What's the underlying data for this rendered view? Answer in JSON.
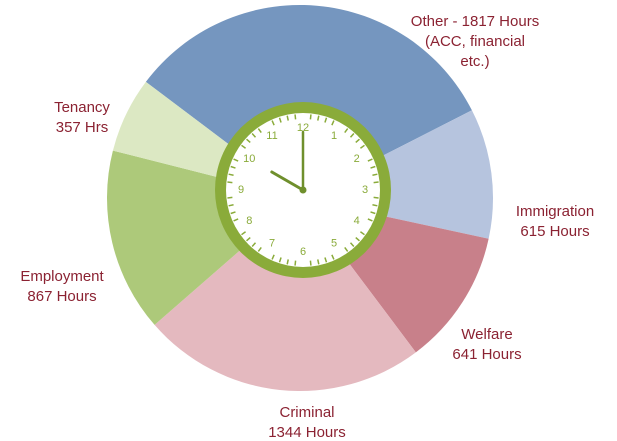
{
  "chart_data": {
    "type": "pie",
    "values": [
      1817,
      615,
      641,
      1344,
      867,
      357
    ],
    "value_labels": [
      [
        "Other - 1817 Hours",
        "(ACC, financial",
        "etc.)"
      ],
      [
        "Immigration",
        "615 Hours"
      ],
      [
        "Welfare",
        "641 Hours"
      ],
      [
        "Criminal",
        "1344 Hours"
      ],
      [
        "Employment",
        "867 Hours"
      ],
      [
        "Tenancy",
        "357 Hrs"
      ]
    ],
    "colors": [
      "#7596bf",
      "#b6c4de",
      "#c8808a",
      "#e4b9bf",
      "#adc97a",
      "#dce8c3"
    ],
    "clock_numbers": [
      "12",
      "1",
      "2",
      "3",
      "4",
      "5",
      "6",
      "7",
      "8",
      "9",
      "10",
      "11"
    ]
  }
}
